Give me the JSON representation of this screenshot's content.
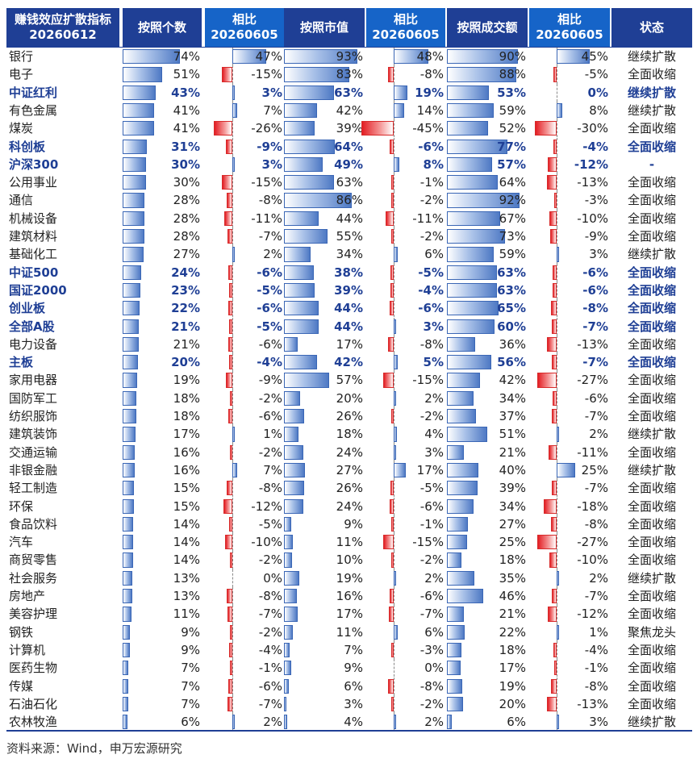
{
  "chart_data": {
    "type": "table",
    "columns": [
      {
        "key": "name",
        "label_lines": [
          "赚钱效应扩散指标",
          "20260612"
        ]
      },
      {
        "key": "count",
        "label_lines": [
          "按照个数"
        ]
      },
      {
        "key": "count_chg",
        "label_lines": [
          "相比",
          "20260605"
        ]
      },
      {
        "key": "mcap",
        "label_lines": [
          "按照市值"
        ]
      },
      {
        "key": "mcap_chg",
        "label_lines": [
          "相比",
          "20260605"
        ]
      },
      {
        "key": "turnover",
        "label_lines": [
          "按照成交额"
        ]
      },
      {
        "key": "turnover_chg",
        "label_lines": [
          "相比",
          "20260605"
        ]
      },
      {
        "key": "status",
        "label_lines": [
          "状态"
        ]
      }
    ],
    "rows": [
      {
        "name": "银行",
        "bold": false,
        "count": 74,
        "count_chg": 47,
        "mcap": 93,
        "mcap_chg": 48,
        "turnover": 90,
        "turnover_chg": 45,
        "status": "继续扩散"
      },
      {
        "name": "电子",
        "bold": false,
        "count": 51,
        "count_chg": -15,
        "mcap": 83,
        "mcap_chg": -8,
        "turnover": 88,
        "turnover_chg": -5,
        "status": "全面收缩"
      },
      {
        "name": "中证红利",
        "bold": true,
        "count": 43,
        "count_chg": 3,
        "mcap": 63,
        "mcap_chg": 19,
        "turnover": 53,
        "turnover_chg": 0,
        "status": "继续扩散"
      },
      {
        "name": "有色金属",
        "bold": false,
        "count": 41,
        "count_chg": 7,
        "mcap": 42,
        "mcap_chg": 14,
        "turnover": 59,
        "turnover_chg": 8,
        "status": "继续扩散"
      },
      {
        "name": "煤炭",
        "bold": false,
        "count": 41,
        "count_chg": -26,
        "mcap": 39,
        "mcap_chg": -45,
        "turnover": 52,
        "turnover_chg": -30,
        "status": "全面收缩"
      },
      {
        "name": "科创板",
        "bold": true,
        "count": 31,
        "count_chg": -9,
        "mcap": 64,
        "mcap_chg": -6,
        "turnover": 77,
        "turnover_chg": -4,
        "status": "全面收缩"
      },
      {
        "name": "沪深300",
        "bold": true,
        "count": 30,
        "count_chg": 3,
        "mcap": 49,
        "mcap_chg": 8,
        "turnover": 57,
        "turnover_chg": -12,
        "status": "-"
      },
      {
        "name": "公用事业",
        "bold": false,
        "count": 30,
        "count_chg": -15,
        "mcap": 63,
        "mcap_chg": -1,
        "turnover": 64,
        "turnover_chg": -13,
        "status": "全面收缩"
      },
      {
        "name": "通信",
        "bold": false,
        "count": 28,
        "count_chg": -8,
        "mcap": 86,
        "mcap_chg": -2,
        "turnover": 92,
        "turnover_chg": -3,
        "status": "全面收缩"
      },
      {
        "name": "机械设备",
        "bold": false,
        "count": 28,
        "count_chg": -11,
        "mcap": 44,
        "mcap_chg": -11,
        "turnover": 67,
        "turnover_chg": -10,
        "status": "全面收缩"
      },
      {
        "name": "建筑材料",
        "bold": false,
        "count": 28,
        "count_chg": -7,
        "mcap": 55,
        "mcap_chg": -2,
        "turnover": 73,
        "turnover_chg": -9,
        "status": "全面收缩"
      },
      {
        "name": "基础化工",
        "bold": false,
        "count": 27,
        "count_chg": 2,
        "mcap": 34,
        "mcap_chg": 6,
        "turnover": 59,
        "turnover_chg": 3,
        "status": "继续扩散"
      },
      {
        "name": "中证500",
        "bold": true,
        "count": 24,
        "count_chg": -6,
        "mcap": 38,
        "mcap_chg": -5,
        "turnover": 63,
        "turnover_chg": -6,
        "status": "全面收缩"
      },
      {
        "name": "国证2000",
        "bold": true,
        "count": 23,
        "count_chg": -5,
        "mcap": 39,
        "mcap_chg": -4,
        "turnover": 63,
        "turnover_chg": -6,
        "status": "全面收缩"
      },
      {
        "name": "创业板",
        "bold": true,
        "count": 22,
        "count_chg": -6,
        "mcap": 44,
        "mcap_chg": -6,
        "turnover": 65,
        "turnover_chg": -8,
        "status": "全面收缩"
      },
      {
        "name": "全部A股",
        "bold": true,
        "count": 21,
        "count_chg": -5,
        "mcap": 44,
        "mcap_chg": 3,
        "turnover": 60,
        "turnover_chg": -7,
        "status": "全面收缩"
      },
      {
        "name": "电力设备",
        "bold": false,
        "count": 21,
        "count_chg": -6,
        "mcap": 17,
        "mcap_chg": -8,
        "turnover": 36,
        "turnover_chg": -13,
        "status": "全面收缩"
      },
      {
        "name": "主板",
        "bold": true,
        "count": 20,
        "count_chg": -4,
        "mcap": 42,
        "mcap_chg": 5,
        "turnover": 56,
        "turnover_chg": -7,
        "status": "全面收缩"
      },
      {
        "name": "家用电器",
        "bold": false,
        "count": 19,
        "count_chg": -9,
        "mcap": 57,
        "mcap_chg": -15,
        "turnover": 42,
        "turnover_chg": -27,
        "status": "全面收缩"
      },
      {
        "name": "国防军工",
        "bold": false,
        "count": 18,
        "count_chg": -2,
        "mcap": 20,
        "mcap_chg": 2,
        "turnover": 34,
        "turnover_chg": -6,
        "status": "全面收缩"
      },
      {
        "name": "纺织服饰",
        "bold": false,
        "count": 18,
        "count_chg": -6,
        "mcap": 26,
        "mcap_chg": -2,
        "turnover": 37,
        "turnover_chg": -7,
        "status": "全面收缩"
      },
      {
        "name": "建筑装饰",
        "bold": false,
        "count": 17,
        "count_chg": 1,
        "mcap": 18,
        "mcap_chg": 4,
        "turnover": 51,
        "turnover_chg": 2,
        "status": "继续扩散"
      },
      {
        "name": "交通运输",
        "bold": false,
        "count": 16,
        "count_chg": -2,
        "mcap": 24,
        "mcap_chg": 3,
        "turnover": 21,
        "turnover_chg": -11,
        "status": "全面收缩"
      },
      {
        "name": "非银金融",
        "bold": false,
        "count": 16,
        "count_chg": 7,
        "mcap": 27,
        "mcap_chg": 17,
        "turnover": 40,
        "turnover_chg": 25,
        "status": "继续扩散"
      },
      {
        "name": "轻工制造",
        "bold": false,
        "count": 15,
        "count_chg": -8,
        "mcap": 26,
        "mcap_chg": -5,
        "turnover": 39,
        "turnover_chg": -7,
        "status": "全面收缩"
      },
      {
        "name": "环保",
        "bold": false,
        "count": 15,
        "count_chg": -12,
        "mcap": 24,
        "mcap_chg": -6,
        "turnover": 34,
        "turnover_chg": -18,
        "status": "全面收缩"
      },
      {
        "name": "食品饮料",
        "bold": false,
        "count": 14,
        "count_chg": -5,
        "mcap": 9,
        "mcap_chg": -1,
        "turnover": 27,
        "turnover_chg": -8,
        "status": "全面收缩"
      },
      {
        "name": "汽车",
        "bold": false,
        "count": 14,
        "count_chg": -10,
        "mcap": 11,
        "mcap_chg": -15,
        "turnover": 25,
        "turnover_chg": -27,
        "status": "全面收缩"
      },
      {
        "name": "商贸零售",
        "bold": false,
        "count": 14,
        "count_chg": -2,
        "mcap": 10,
        "mcap_chg": -2,
        "turnover": 18,
        "turnover_chg": -10,
        "status": "全面收缩"
      },
      {
        "name": "社会服务",
        "bold": false,
        "count": 13,
        "count_chg": 0,
        "mcap": 19,
        "mcap_chg": 2,
        "turnover": 35,
        "turnover_chg": 2,
        "status": "继续扩散"
      },
      {
        "name": "房地产",
        "bold": false,
        "count": 13,
        "count_chg": -8,
        "mcap": 16,
        "mcap_chg": -6,
        "turnover": 46,
        "turnover_chg": -7,
        "status": "全面收缩"
      },
      {
        "name": "美容护理",
        "bold": false,
        "count": 11,
        "count_chg": -7,
        "mcap": 17,
        "mcap_chg": -7,
        "turnover": 21,
        "turnover_chg": -12,
        "status": "全面收缩"
      },
      {
        "name": "钢铁",
        "bold": false,
        "count": 9,
        "count_chg": -2,
        "mcap": 11,
        "mcap_chg": 6,
        "turnover": 22,
        "turnover_chg": 1,
        "status": "聚焦龙头"
      },
      {
        "name": "计算机",
        "bold": false,
        "count": 9,
        "count_chg": -4,
        "mcap": 7,
        "mcap_chg": -3,
        "turnover": 18,
        "turnover_chg": -4,
        "status": "全面收缩"
      },
      {
        "name": "医药生物",
        "bold": false,
        "count": 7,
        "count_chg": -1,
        "mcap": 9,
        "mcap_chg": 0,
        "turnover": 17,
        "turnover_chg": -1,
        "status": "全面收缩"
      },
      {
        "name": "传媒",
        "bold": false,
        "count": 7,
        "count_chg": -6,
        "mcap": 6,
        "mcap_chg": -8,
        "turnover": 19,
        "turnover_chg": -8,
        "status": "全面收缩"
      },
      {
        "name": "石油石化",
        "bold": false,
        "count": 7,
        "count_chg": -7,
        "mcap": 3,
        "mcap_chg": -2,
        "turnover": 20,
        "turnover_chg": -13,
        "status": "全面收缩"
      },
      {
        "name": "农林牧渔",
        "bold": false,
        "count": 6,
        "count_chg": 2,
        "mcap": 4,
        "mcap_chg": 2,
        "turnover": 6,
        "turnover_chg": 3,
        "status": "继续扩散"
      }
    ],
    "unit": "%",
    "value_range": [
      0,
      100
    ],
    "change_range": [
      -50,
      50
    ],
    "colors": {
      "header_main": "#1f3f95",
      "header_alt": "#1664c8",
      "positive_bar": "#4e79c4",
      "negative_bar": "#e31e24",
      "bold_text": "#1f3f95"
    }
  },
  "footer": {
    "source": "资料来源：Wind，申万宏源研究"
  }
}
